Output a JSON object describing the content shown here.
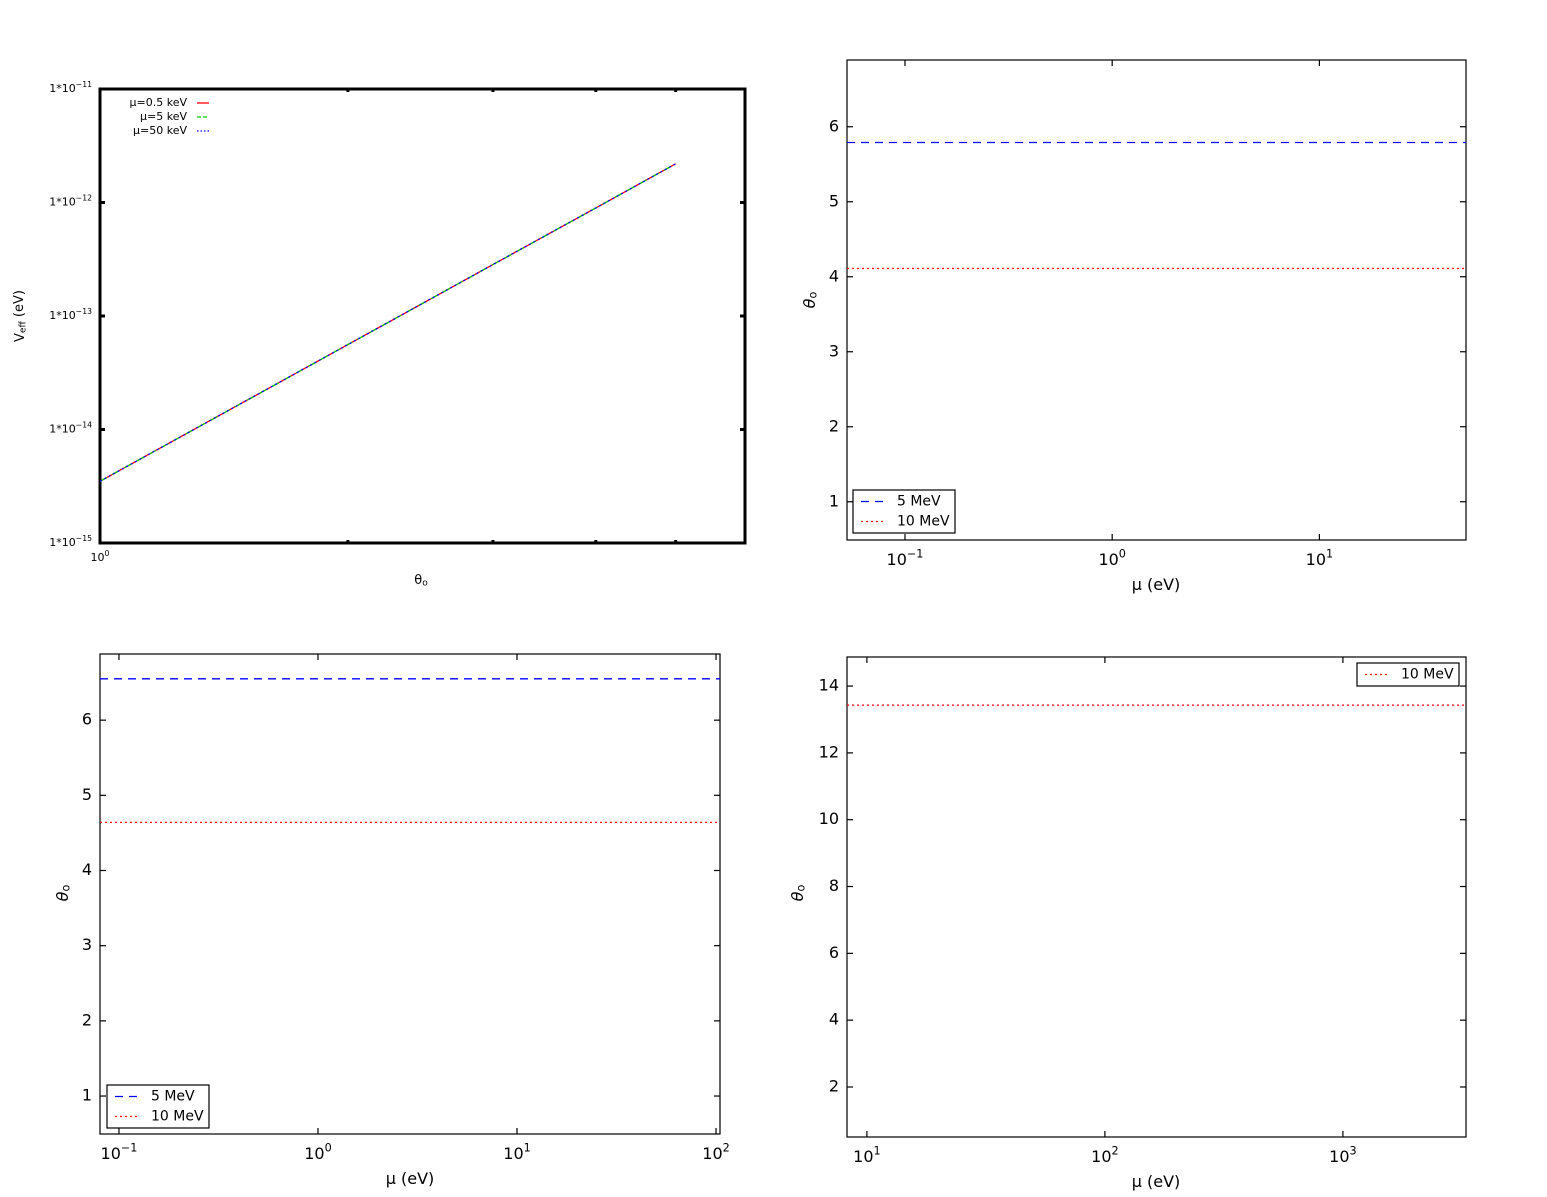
{
  "chart_data": [
    {
      "type": "line",
      "xscale": "log",
      "yscale": "log",
      "xlim": [
        1,
        6.07
      ],
      "ylim": [
        1e-15,
        1e-11
      ],
      "xticks": [
        {
          "value": 1,
          "label": "10",
          "exp": "0"
        }
      ],
      "xminor": [
        2,
        3,
        4,
        5
      ],
      "yticks": [
        {
          "value": 1e-15,
          "label": "1*10",
          "exp": "−15"
        },
        {
          "value": 1e-14,
          "label": "1*10",
          "exp": "−14"
        },
        {
          "value": 1e-13,
          "label": "1*10",
          "exp": "−13"
        },
        {
          "value": 1e-12,
          "label": "1*10",
          "exp": "−12"
        },
        {
          "value": 1e-11,
          "label": "1*10",
          "exp": "−11"
        }
      ],
      "xlabel": "θ",
      "xlabel_sub": "o",
      "ylabel": "V",
      "ylabel_sub": "eff",
      "ylabel_rest": " (eV)",
      "legend": "upper left",
      "legend_frame": false,
      "x": [
        1,
        2,
        3,
        4,
        5
      ],
      "series": [
        {
          "name": "μ=0.5 keV",
          "color": "#ff0000",
          "dash": "solid",
          "values": [
            3.5e-15,
            5.6e-14,
            2.84e-13,
            8.96e-13,
            2.19e-12
          ]
        },
        {
          "name": "μ=5 keV",
          "color": "#00cc00",
          "dash": "dashed",
          "values": [
            3.5e-15,
            5.6e-14,
            2.84e-13,
            8.96e-13,
            2.19e-12
          ]
        },
        {
          "name": "μ=50 keV",
          "color": "#0000ff",
          "dash": "dotted",
          "values": [
            3.5e-15,
            5.6e-14,
            2.84e-13,
            8.96e-13,
            2.19e-12
          ]
        }
      ]
    },
    {
      "type": "line",
      "xscale": "log",
      "yscale": "linear",
      "xlim": [
        0.0525,
        51
      ],
      "ylim": [
        0.49,
        6.89
      ],
      "xticks": [
        {
          "value": 0.1,
          "label": "10",
          "exp": "−1"
        },
        {
          "value": 1,
          "label": "10",
          "exp": "0"
        },
        {
          "value": 10,
          "label": "10",
          "exp": "1"
        }
      ],
      "yticks": [
        1,
        2,
        3,
        4,
        5,
        6
      ],
      "xlabel": "μ (eV)",
      "ylabel": "θ",
      "ylabel_sub": "o",
      "legend": "lower left",
      "legend_frame": true,
      "x": [
        0.0525,
        51
      ],
      "series": [
        {
          "name": "5 MeV",
          "color": "#0000ff",
          "dash": "dashed",
          "values": [
            5.79,
            5.79
          ]
        },
        {
          "name": "10 MeV",
          "color": "#ff0000",
          "dash": "dotted",
          "values": [
            4.11,
            4.11
          ]
        }
      ]
    },
    {
      "type": "line",
      "xscale": "log",
      "yscale": "linear",
      "xlim": [
        0.0803,
        104.7
      ],
      "ylim": [
        0.495,
        6.88
      ],
      "xticks": [
        {
          "value": 0.1,
          "label": "10",
          "exp": "−1"
        },
        {
          "value": 1,
          "label": "10",
          "exp": "0"
        },
        {
          "value": 10,
          "label": "10",
          "exp": "1"
        },
        {
          "value": 100,
          "label": "10",
          "exp": "2"
        }
      ],
      "yticks": [
        1,
        2,
        3,
        4,
        5,
        6
      ],
      "xlabel": "μ (eV)",
      "ylabel": "θ",
      "ylabel_sub": "o",
      "legend": "lower left",
      "legend_frame": true,
      "x": [
        0.0803,
        104.7
      ],
      "series": [
        {
          "name": "5 MeV",
          "color": "#0000ff",
          "dash": "dashed",
          "values": [
            6.55,
            6.55
          ]
        },
        {
          "name": "10 MeV",
          "color": "#ff0000",
          "dash": "dotted",
          "values": [
            4.64,
            4.64
          ]
        }
      ]
    },
    {
      "type": "line",
      "xscale": "log",
      "yscale": "linear",
      "xlim": [
        8.25,
        3290
      ],
      "ylim": [
        0.503,
        14.87
      ],
      "xticks": [
        {
          "value": 10,
          "label": "10",
          "exp": "1"
        },
        {
          "value": 100,
          "label": "10",
          "exp": "2"
        },
        {
          "value": 1000,
          "label": "10",
          "exp": "3"
        }
      ],
      "yticks": [
        2,
        4,
        6,
        8,
        10,
        12,
        14
      ],
      "xlabel": "μ (eV)",
      "ylabel": "θ",
      "ylabel_sub": "o",
      "legend": "upper right",
      "legend_frame": true,
      "x": [
        8.25,
        3290
      ],
      "series": [
        {
          "name": "10 MeV",
          "color": "#ff0000",
          "dash": "dotted",
          "values": [
            13.43,
            13.43
          ]
        }
      ]
    }
  ]
}
